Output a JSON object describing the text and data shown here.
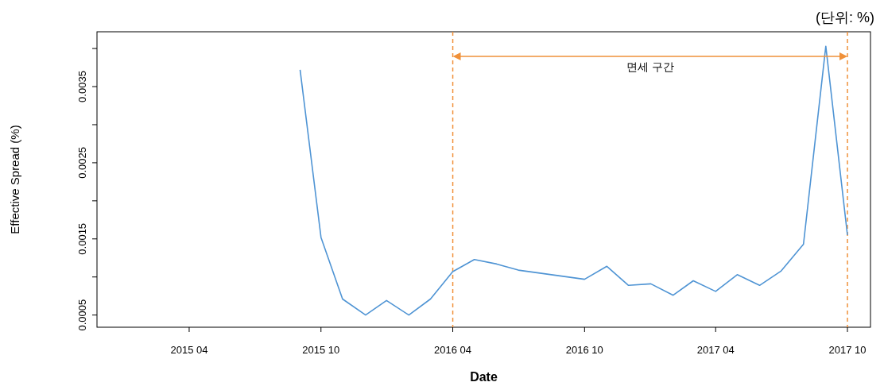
{
  "chart_data": {
    "type": "line",
    "xlabel": "Date",
    "ylabel": "Effective Spread (%)",
    "annotations": [
      "(단위: %)",
      "면세 구간"
    ],
    "x": [
      "2015-09-02",
      "2015-10-01",
      "2015-10-31",
      "2015-12-02",
      "2015-12-31",
      "2016-01-31",
      "2016-03-01",
      "2016-04-01",
      "2016-05-01",
      "2016-06-01",
      "2016-07-01",
      "2016-10-01",
      "2016-11-01",
      "2016-12-01",
      "2017-01-01",
      "2017-02-01",
      "2017-03-01",
      "2017-04-01",
      "2017-05-01",
      "2017-06-01",
      "2017-07-01",
      "2017-08-01",
      "2017-09-01",
      "2017-10-01"
    ],
    "series": [
      {
        "color": "#4f94d4",
        "values": [
          0.00372,
          0.00152,
          0.00071,
          0.0005,
          0.00069,
          0.0005,
          0.00071,
          0.00107,
          0.00123,
          0.00117,
          0.00109,
          0.00097,
          0.00114,
          0.00089,
          0.00091,
          0.00076,
          0.00095,
          0.00081,
          0.00103,
          0.00089,
          0.00108,
          0.00143,
          0.00403,
          0.00155
        ]
      }
    ],
    "xlim": [
      "2014-11-24",
      "2017-11-02"
    ],
    "xticks": [
      {
        "value": "2015-04-01",
        "label": "2015 04"
      },
      {
        "value": "2015-10-01",
        "label": "2015 10"
      },
      {
        "value": "2016-04-01",
        "label": "2016 04"
      },
      {
        "value": "2016-10-01",
        "label": "2016 10"
      },
      {
        "value": "2017-04-01",
        "label": "2017 04"
      },
      {
        "value": "2017-10-01",
        "label": "2017 10"
      }
    ],
    "ylim": [
      0.00034,
      0.00422
    ],
    "yticks": [
      0.0005,
      {
        "value": 0.001,
        "label": null
      },
      0.0015,
      {
        "value": 0.002,
        "label": null
      },
      0.0025,
      {
        "value": 0.003,
        "label": null
      },
      0.0035,
      {
        "value": 0.004,
        "label": null
      }
    ],
    "ref_lines": [
      {
        "axis": "x",
        "value": "2016-04-01",
        "color": "#f0913a",
        "line_style": "dashed"
      },
      {
        "axis": "x",
        "value": "2017-10-01",
        "color": "#f0913a",
        "line_style": "dashed"
      }
    ]
  }
}
